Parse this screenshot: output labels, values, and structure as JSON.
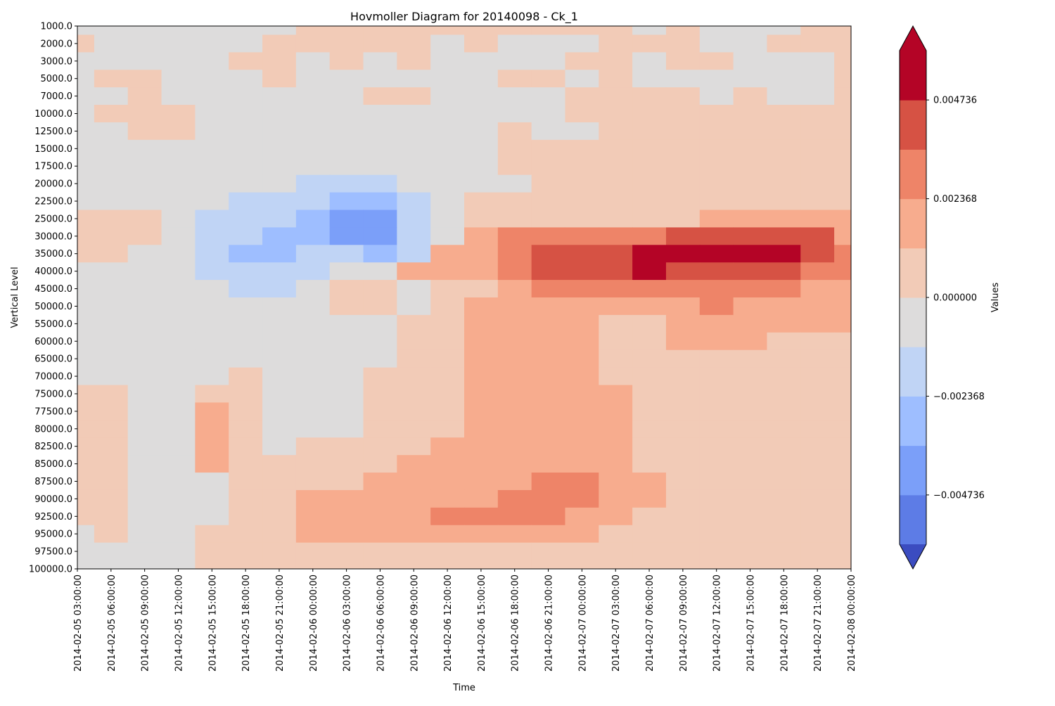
{
  "chart_data": {
    "type": "heatmap",
    "title": "Hovmoller Diagram for 20140098 - Ck_1",
    "xlabel": "Time",
    "ylabel": "Vertical Level",
    "colorbar_label": "Values",
    "x": [
      "2014-02-05 03:00:00",
      "2014-02-05 06:00:00",
      "2014-02-05 09:00:00",
      "2014-02-05 12:00:00",
      "2014-02-05 15:00:00",
      "2014-02-05 18:00:00",
      "2014-02-05 21:00:00",
      "2014-02-06 00:00:00",
      "2014-02-06 03:00:00",
      "2014-02-06 06:00:00",
      "2014-02-06 09:00:00",
      "2014-02-06 12:00:00",
      "2014-02-06 15:00:00",
      "2014-02-06 18:00:00",
      "2014-02-06 21:00:00",
      "2014-02-07 00:00:00",
      "2014-02-07 03:00:00",
      "2014-02-07 06:00:00",
      "2014-02-07 09:00:00",
      "2014-02-07 12:00:00",
      "2014-02-07 15:00:00",
      "2014-02-07 18:00:00",
      "2014-02-07 21:00:00",
      "2014-02-08 00:00:00"
    ],
    "y": [
      "1000.0",
      "2000.0",
      "3000.0",
      "5000.0",
      "7000.0",
      "10000.0",
      "12500.0",
      "15000.0",
      "17500.0",
      "20000.0",
      "22500.0",
      "25000.0",
      "30000.0",
      "35000.0",
      "40000.0",
      "45000.0",
      "50000.0",
      "55000.0",
      "60000.0",
      "65000.0",
      "70000.0",
      "75000.0",
      "77500.0",
      "80000.0",
      "82500.0",
      "85000.0",
      "87500.0",
      "90000.0",
      "92500.0",
      "95000.0",
      "97500.0",
      "100000.0"
    ],
    "y_inverted": true,
    "levels": [
      -0.005919,
      -0.004736,
      -0.003552,
      -0.002368,
      -0.001184,
      0.0,
      0.001184,
      0.002368,
      0.003552,
      0.004736,
      0.005919
    ],
    "level_colors": [
      "#5d7ce6",
      "#7b9ff9",
      "#9ebeff",
      "#c0d4f5",
      "#dddcdc",
      "#f2cbb7",
      "#f7ac8e",
      "#ee8468",
      "#d65244",
      "#b40426"
    ],
    "under_color": "#3b4cc0",
    "over_color": "#b40426",
    "colorbar_ticks": [
      "0.004736",
      "0.002368",
      "0.000000",
      "−0.002368",
      "−0.004736"
    ],
    "extend": "both",
    "values": [
      [
        -0.0004,
        -0.0003,
        -0.0003,
        -0.0002,
        -0.0002,
        -0.0003,
        -0.0002,
        0.0001,
        0.0002,
        0.0002,
        0.0002,
        0.0003,
        0.0002,
        0.0001,
        0.0001,
        0.0001,
        0.0001,
        -0.0004,
        0.0002,
        -0.0003,
        -0.0003,
        -0.0003,
        0.0002,
        0.0003
      ],
      [
        0.0002,
        -0.0003,
        -0.0003,
        -0.0002,
        -0.0002,
        -0.0002,
        0.0002,
        0.0002,
        0.0002,
        0.0002,
        0.0002,
        -0.0003,
        0.0002,
        -0.0003,
        -0.0003,
        -0.0003,
        0.0002,
        0.0002,
        0.0002,
        -0.0003,
        -0.0003,
        0.0002,
        0.0003,
        0.0003
      ],
      [
        -0.0003,
        -0.0003,
        -0.0003,
        -0.0002,
        -0.0002,
        0.0002,
        0.0002,
        -0.0003,
        0.0002,
        -0.0003,
        0.0002,
        -0.0003,
        -0.0003,
        -0.0003,
        -0.0003,
        0.0002,
        0.0002,
        -0.0003,
        0.0002,
        0.0002,
        -0.0003,
        -0.0003,
        -0.0003,
        0.0003
      ],
      [
        -0.0003,
        0.0002,
        0.0002,
        -0.0002,
        -0.0002,
        -0.0003,
        0.0002,
        -0.0003,
        -0.0003,
        -0.0003,
        -0.0003,
        -0.0003,
        -0.0003,
        0.0002,
        0.0002,
        -0.0003,
        0.0002,
        -0.0003,
        -0.0003,
        -0.0003,
        -0.0003,
        -0.0003,
        -0.0003,
        0.0003
      ],
      [
        -0.0003,
        -0.0002,
        0.0002,
        -0.0002,
        -0.0003,
        -0.0003,
        -0.0003,
        -0.0003,
        -0.0003,
        0.0002,
        0.0002,
        -0.0003,
        -0.0003,
        -0.0003,
        -0.0003,
        0.0002,
        0.0002,
        0.0002,
        0.0002,
        -0.0003,
        0.0002,
        -0.0003,
        -0.0003,
        0.0003
      ],
      [
        -0.0003,
        0.0002,
        0.0002,
        0.0002,
        -0.0003,
        -0.0003,
        -0.0003,
        -0.0003,
        -0.0003,
        -0.0003,
        -0.0003,
        -0.0003,
        -0.0003,
        -0.0003,
        -0.0003,
        0.0002,
        0.0002,
        0.0002,
        0.0002,
        0.0002,
        0.0002,
        0.0002,
        0.0002,
        0.0003
      ],
      [
        -0.0003,
        -0.0003,
        0.0002,
        0.0002,
        -0.0003,
        -0.0003,
        -0.0003,
        -0.0003,
        -0.0003,
        -0.0003,
        -0.0003,
        -0.0003,
        -0.0003,
        0.0002,
        -0.0003,
        -0.0003,
        0.0002,
        0.0002,
        0.0002,
        0.0002,
        0.0002,
        0.0002,
        0.0002,
        0.0003
      ],
      [
        -0.0003,
        -0.0003,
        -0.0003,
        -0.0003,
        -0.0003,
        -0.0003,
        -0.0003,
        -0.0003,
        -0.0003,
        -0.0003,
        -0.0003,
        -0.0003,
        -0.0003,
        0.0002,
        0.0002,
        0.0002,
        0.0002,
        0.0002,
        0.0002,
        0.0002,
        0.0002,
        0.0002,
        0.0002,
        0.0003
      ],
      [
        -0.0003,
        -0.0003,
        -0.0003,
        -0.0003,
        -0.0003,
        -0.0003,
        -0.0003,
        -0.0003,
        -0.0003,
        -0.0003,
        -0.0003,
        -0.0003,
        -0.0003,
        0.0002,
        0.0002,
        0.0002,
        0.0002,
        0.0002,
        0.0002,
        0.0002,
        0.0002,
        0.0002,
        0.0002,
        0.0003
      ],
      [
        -0.0003,
        -0.0003,
        -0.0003,
        -0.0003,
        -0.0003,
        -0.0003,
        -0.0003,
        -0.0013,
        -0.0014,
        -0.0014,
        -0.0003,
        -0.0003,
        -0.0003,
        -0.0003,
        0.0002,
        0.0002,
        0.0002,
        0.0002,
        0.0002,
        0.0002,
        0.0002,
        0.0002,
        0.0002,
        0.0003
      ],
      [
        -0.0003,
        -0.0003,
        -0.0003,
        -0.0003,
        -0.0003,
        -0.0015,
        -0.0016,
        -0.0016,
        -0.0028,
        -0.0028,
        -0.0013,
        -0.0003,
        0.0002,
        0.0002,
        0.0002,
        0.0002,
        0.0002,
        0.0002,
        0.0002,
        0.0002,
        0.0002,
        0.0002,
        0.0002,
        0.0003
      ],
      [
        0.0002,
        0.0002,
        0.0002,
        -0.0003,
        -0.0015,
        -0.0016,
        -0.0017,
        -0.0026,
        -0.0045,
        -0.0045,
        -0.0017,
        -0.0003,
        0.0002,
        0.0002,
        0.0002,
        0.0002,
        0.0002,
        0.0002,
        0.0002,
        0.0012,
        0.0013,
        0.0012,
        0.0012,
        0.0013
      ],
      [
        0.0002,
        0.0002,
        0.0002,
        -0.0003,
        -0.0015,
        -0.0017,
        -0.0029,
        -0.0027,
        -0.0044,
        -0.0043,
        -0.0016,
        -0.0003,
        0.0013,
        0.0024,
        0.0025,
        0.0025,
        0.0025,
        0.0026,
        0.0037,
        0.0038,
        0.0038,
        0.0037,
        0.0037,
        0.0013
      ],
      [
        0.0002,
        0.0002,
        -0.0003,
        -0.0003,
        -0.0015,
        -0.0027,
        -0.0028,
        -0.0017,
        -0.0017,
        -0.0028,
        -0.0016,
        0.0012,
        0.0012,
        0.0024,
        0.0037,
        0.0037,
        0.0038,
        0.005,
        0.0051,
        0.0051,
        0.0051,
        0.0051,
        0.0038,
        0.0026
      ],
      [
        -0.0003,
        -0.0003,
        -0.0003,
        -0.0003,
        -0.0015,
        -0.0016,
        -0.0016,
        -0.0016,
        -0.0003,
        -0.0003,
        0.0013,
        0.0013,
        0.0013,
        0.0024,
        0.0037,
        0.0037,
        0.0037,
        0.005,
        0.0038,
        0.0038,
        0.0038,
        0.0037,
        0.0025,
        0.0026
      ],
      [
        -0.0003,
        -0.0003,
        -0.0003,
        -0.0003,
        -0.0003,
        -0.0015,
        -0.0016,
        -0.0003,
        0.0002,
        0.0002,
        -0.0003,
        0.0002,
        0.0002,
        0.0013,
        0.0024,
        0.0025,
        0.0025,
        0.0025,
        0.0025,
        0.0026,
        0.0025,
        0.0025,
        0.0013,
        0.0013
      ],
      [
        -0.0003,
        -0.0003,
        -0.0003,
        -0.0003,
        -0.0003,
        -0.0003,
        -0.0003,
        -0.0003,
        0.0002,
        0.0002,
        -0.0003,
        0.0002,
        0.0012,
        0.0012,
        0.0013,
        0.0013,
        0.0013,
        0.0013,
        0.0013,
        0.0025,
        0.0013,
        0.0013,
        0.0013,
        0.0013
      ],
      [
        -0.0003,
        -0.0003,
        -0.0003,
        -0.0003,
        -0.0003,
        -0.0003,
        -0.0003,
        -0.0003,
        -0.0003,
        -0.0003,
        0.0002,
        0.0002,
        0.0012,
        0.0013,
        0.0013,
        0.0013,
        0.0002,
        0.0002,
        0.0013,
        0.0013,
        0.0013,
        0.0013,
        0.0013,
        0.0013
      ],
      [
        -0.0003,
        -0.0003,
        -0.0003,
        -0.0003,
        -0.0003,
        -0.0003,
        -0.0003,
        -0.0003,
        -0.0003,
        -0.0003,
        0.0002,
        0.0002,
        0.0012,
        0.0013,
        0.0013,
        0.0013,
        0.0002,
        0.0002,
        0.0013,
        0.0013,
        0.0013,
        0.0002,
        0.0002,
        0.0002
      ],
      [
        -0.0003,
        -0.0003,
        -0.0003,
        -0.0003,
        -0.0003,
        -0.0003,
        -0.0003,
        -0.0003,
        -0.0003,
        -0.0003,
        0.0002,
        0.0002,
        0.0012,
        0.0013,
        0.0013,
        0.0013,
        0.0002,
        0.0002,
        0.0002,
        0.0002,
        0.0002,
        0.0002,
        0.0002,
        0.0002
      ],
      [
        -0.0003,
        -0.0003,
        -0.0003,
        -0.0003,
        -0.0003,
        0.0002,
        -0.0003,
        -0.0003,
        -0.0003,
        0.0002,
        0.0002,
        0.0002,
        0.0012,
        0.0013,
        0.0013,
        0.0013,
        0.0002,
        0.0002,
        0.0002,
        0.0002,
        0.0002,
        0.0002,
        0.0002,
        0.0002
      ],
      [
        0.0002,
        0.0002,
        -0.0003,
        -0.0003,
        0.0002,
        0.0002,
        -0.0003,
        -0.0003,
        -0.0003,
        0.0002,
        0.0002,
        0.0002,
        0.0012,
        0.0013,
        0.0013,
        0.0013,
        0.0013,
        0.0002,
        0.0002,
        0.0002,
        0.0002,
        0.0002,
        0.0002,
        0.0002
      ],
      [
        0.0002,
        0.0002,
        -0.0003,
        -0.0003,
        0.0012,
        0.0002,
        -0.0003,
        -0.0003,
        -0.0003,
        0.0002,
        0.0002,
        0.0002,
        0.0012,
        0.0013,
        0.0013,
        0.0013,
        0.0013,
        0.0002,
        0.0002,
        0.0002,
        0.0002,
        0.0002,
        0.0002,
        0.0002
      ],
      [
        0.0002,
        0.0002,
        -0.0003,
        -0.0003,
        0.0012,
        0.0002,
        -0.0003,
        -0.0003,
        -0.0003,
        0.0002,
        0.0002,
        0.0002,
        0.0012,
        0.0013,
        0.0013,
        0.0013,
        0.0013,
        0.0002,
        0.0002,
        0.0002,
        0.0002,
        0.0002,
        0.0002,
        0.0002
      ],
      [
        0.0002,
        0.0002,
        -0.0003,
        -0.0003,
        0.0012,
        0.0002,
        -0.0003,
        0.0002,
        0.0002,
        0.0002,
        0.0002,
        0.0012,
        0.0012,
        0.0013,
        0.0013,
        0.0013,
        0.0013,
        0.0002,
        0.0002,
        0.0002,
        0.0002,
        0.0002,
        0.0002,
        0.0002
      ],
      [
        0.0002,
        0.0002,
        -0.0003,
        -0.0003,
        0.0012,
        0.0002,
        0.0002,
        0.0002,
        0.0002,
        0.0002,
        0.0012,
        0.0012,
        0.0012,
        0.0013,
        0.0013,
        0.0013,
        0.0013,
        0.0002,
        0.0002,
        0.0002,
        0.0002,
        0.0002,
        0.0002,
        0.0002
      ],
      [
        0.0002,
        0.0002,
        -0.0003,
        -0.0003,
        -0.0003,
        0.0002,
        0.0002,
        0.0002,
        0.0002,
        0.0012,
        0.0012,
        0.0012,
        0.0012,
        0.0013,
        0.0025,
        0.0025,
        0.0013,
        0.0013,
        0.0002,
        0.0002,
        0.0002,
        0.0002,
        0.0002,
        0.0002
      ],
      [
        0.0002,
        0.0002,
        -0.0003,
        -0.0003,
        -0.0003,
        0.0002,
        0.0002,
        0.0012,
        0.0012,
        0.0012,
        0.0012,
        0.0013,
        0.0013,
        0.0025,
        0.0025,
        0.0025,
        0.0013,
        0.0013,
        0.0002,
        0.0002,
        0.0002,
        0.0002,
        0.0002,
        0.0002
      ],
      [
        0.0002,
        0.0002,
        -0.0003,
        -0.0003,
        -0.0003,
        0.0002,
        0.0002,
        0.0012,
        0.0013,
        0.0013,
        0.0013,
        0.0025,
        0.0025,
        0.0025,
        0.0025,
        0.0013,
        0.0013,
        0.0002,
        0.0002,
        0.0002,
        0.0002,
        0.0002,
        0.0002,
        0.0002
      ],
      [
        -0.0003,
        0.0002,
        -0.0003,
        -0.0003,
        0.0002,
        0.0002,
        0.0002,
        0.0012,
        0.0012,
        0.0012,
        0.0012,
        0.0012,
        0.0013,
        0.0013,
        0.0013,
        0.0013,
        0.0002,
        0.0002,
        0.0002,
        0.0002,
        0.0002,
        0.0002,
        0.0002,
        0.0002
      ],
      [
        -0.0003,
        -0.0003,
        -0.0003,
        -0.0003,
        0.0002,
        0.0002,
        0.0002,
        0.0002,
        0.0002,
        0.0002,
        0.0002,
        0.0002,
        0.0002,
        0.0002,
        0.0002,
        0.0002,
        0.0002,
        0.0002,
        0.0002,
        0.0002,
        0.0002,
        0.0002,
        0.0002,
        0.0002
      ],
      [
        -0.0003,
        -0.0003,
        -0.0003,
        -0.0003,
        0.0002,
        0.0002,
        0.0002,
        0.0002,
        0.0002,
        0.0002,
        0.0002,
        0.0002,
        0.0002,
        0.0002,
        0.0002,
        0.0002,
        0.0002,
        0.0002,
        0.0002,
        0.0002,
        0.0002,
        0.0002,
        0.0002,
        0.0002
      ]
    ]
  }
}
